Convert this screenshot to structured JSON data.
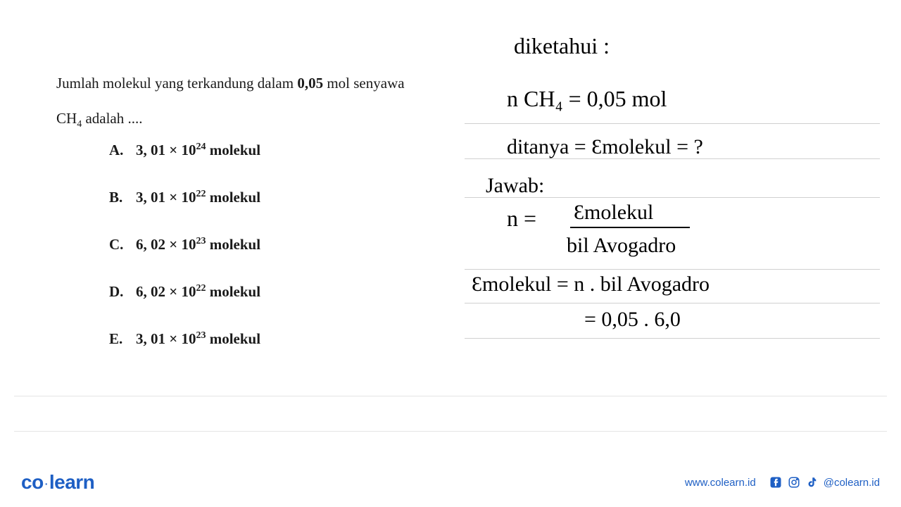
{
  "question": {
    "line1_prefix": "Jumlah molekul yang terkandung dalam ",
    "line1_value": "0,05",
    "line1_suffix": " mol senyawa",
    "line2_compound": "CH",
    "line2_subscript": "4",
    "line2_suffix": " adalah ...."
  },
  "options": [
    {
      "label": "A.",
      "coef": "3, 01",
      "exp": "24",
      "unit": "molekul"
    },
    {
      "label": "B.",
      "coef": "3, 01",
      "exp": "22",
      "unit": "molekul"
    },
    {
      "label": "C.",
      "coef": "6, 02",
      "exp": "23",
      "unit": "molekul"
    },
    {
      "label": "D.",
      "coef": "6, 02",
      "exp": "22",
      "unit": "molekul"
    },
    {
      "label": "E.",
      "coef": "3, 01",
      "exp": "23",
      "unit": "molekul"
    }
  ],
  "handwriting": {
    "l1": "diketahui :",
    "l2": "n CH₄ = 0,05 mol",
    "l3": "ditanya = Ɛmolekul = ?",
    "l4": "Jawab:",
    "l5a": "n =",
    "l5b": "Ɛmolekul",
    "l5c": "bil Avogadro",
    "l6": "Ɛmolekul = n . bil Avogadro",
    "l7": "= 0,05 . 6,0"
  },
  "notebook_lines_y": [
    175,
    225,
    280,
    382,
    430,
    480
  ],
  "divider_lines_y": [
    562,
    612
  ],
  "footer": {
    "logo_co": "co",
    "logo_learn": "learn",
    "website": "www.colearn.id",
    "handle": "@colearn.id"
  },
  "colors": {
    "brand": "#1e5fc4",
    "text": "#1a1a1a",
    "handwriting": "#000000",
    "grid": "#d0d0d0"
  }
}
